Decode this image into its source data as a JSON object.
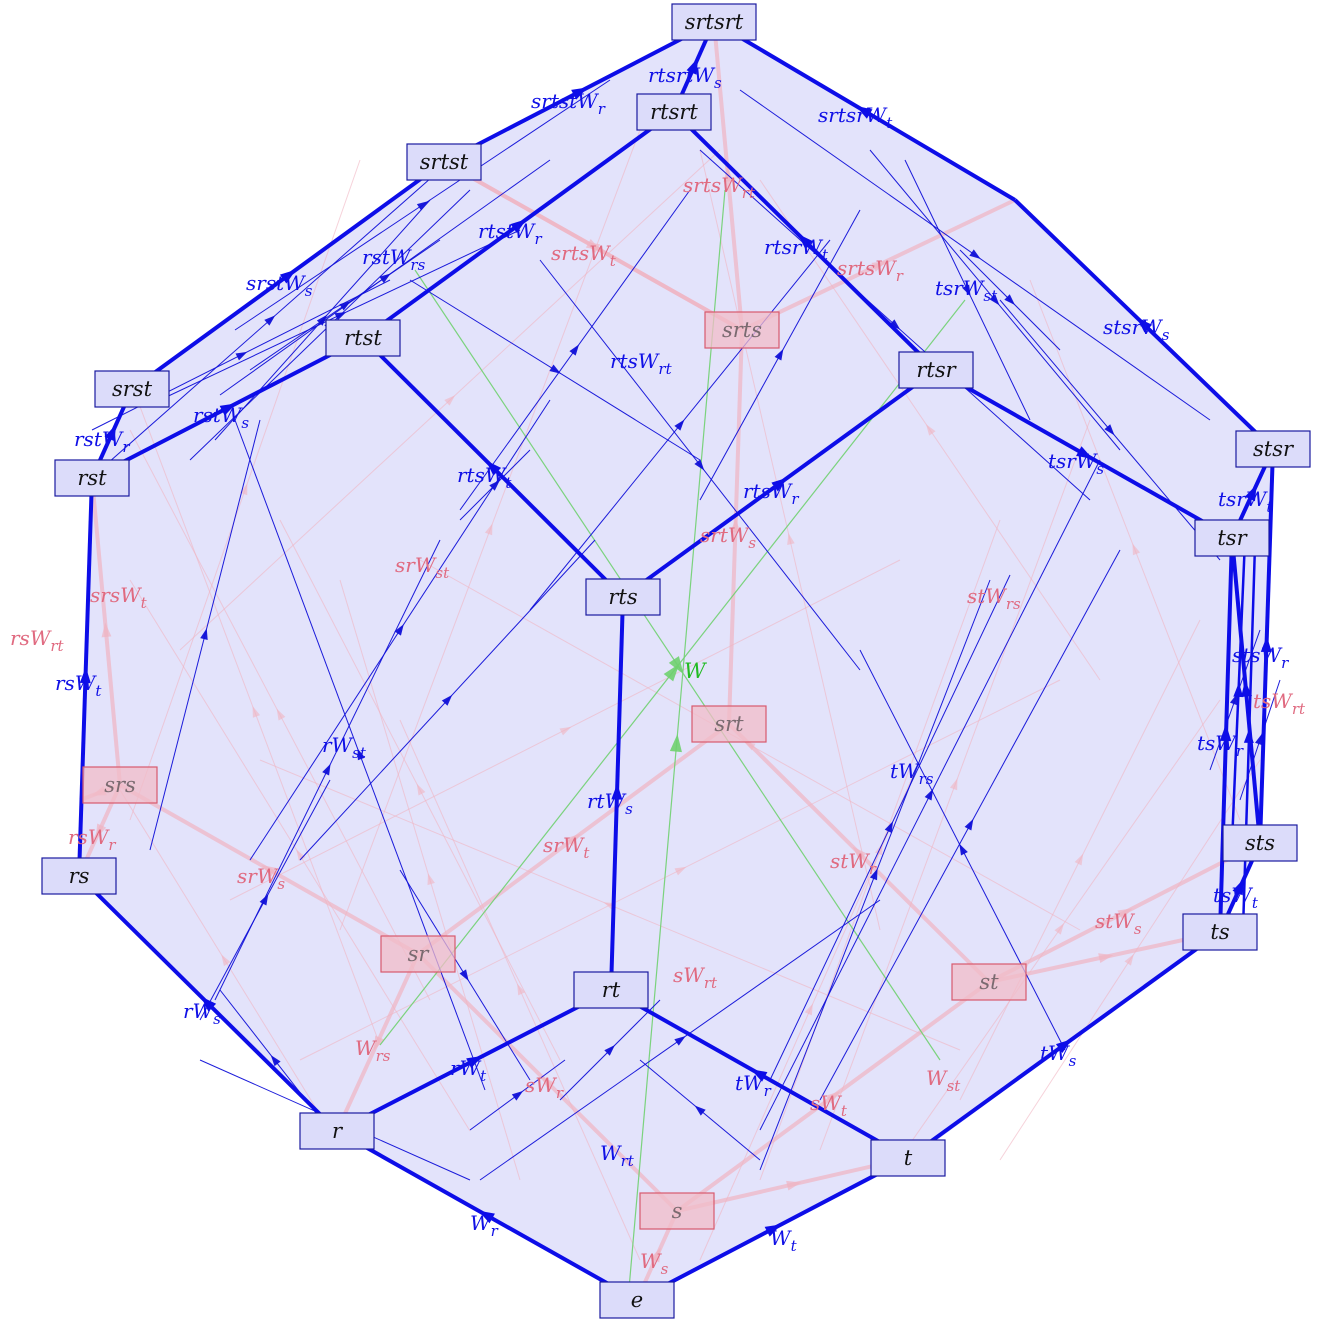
{
  "colors": {
    "front": "#0d0de8",
    "back": "#e87f94",
    "green": "#44cc44",
    "fill": "#e3e3fb",
    "node_front_fill": "#dcdcfa",
    "node_back_fill": "#f2bcc8"
  },
  "nodes_front": [
    "e",
    "r",
    "t",
    "rt",
    "rs",
    "ts",
    "rts",
    "rst",
    "rtst",
    "srst",
    "srtst",
    "rtsrt",
    "srtsrt",
    "rtsr",
    "stsr",
    "tsr",
    "sts"
  ],
  "nodes_back": [
    "s",
    "sr",
    "st",
    "srt",
    "srs",
    "srts"
  ],
  "labels_front": [
    "W_r",
    "W_t",
    "W_{rt}",
    "rW_t",
    "tW_r",
    "rW_s",
    "tW_s",
    "rW_{st}",
    "tW_{rs}",
    "rtW_s",
    "rtsW_t",
    "rtsW_r",
    "rtsW_{rt}",
    "rstW_s",
    "rstW_r",
    "rsW_t",
    "rstW_{rs}",
    "rtstW_r",
    "rtsrW_t",
    "tsrW_{st}",
    "tsrW_s",
    "tsrW_t",
    "tsW_r",
    "stsW_r",
    "tsW_t",
    "srstW_s",
    "srtstW_r",
    "rtsrtW_s",
    "srtsrW_t",
    "stsrW_s"
  ],
  "labels_back": [
    "W_s",
    "sW_r",
    "sW_t",
    "sW_{rt}",
    "W_{rs}",
    "W_{st}",
    "srW_s",
    "srW_t",
    "stW_r",
    "stW_s",
    "srW_{st}",
    "stW_{rs}",
    "srtW_s",
    "rsW_r",
    "srsW_t",
    "rsW_{rt}",
    "tsW_{rt}",
    "srtsW_t",
    "srtsW_r",
    "srtsW_{rt}"
  ],
  "labels_green": [
    "W"
  ]
}
